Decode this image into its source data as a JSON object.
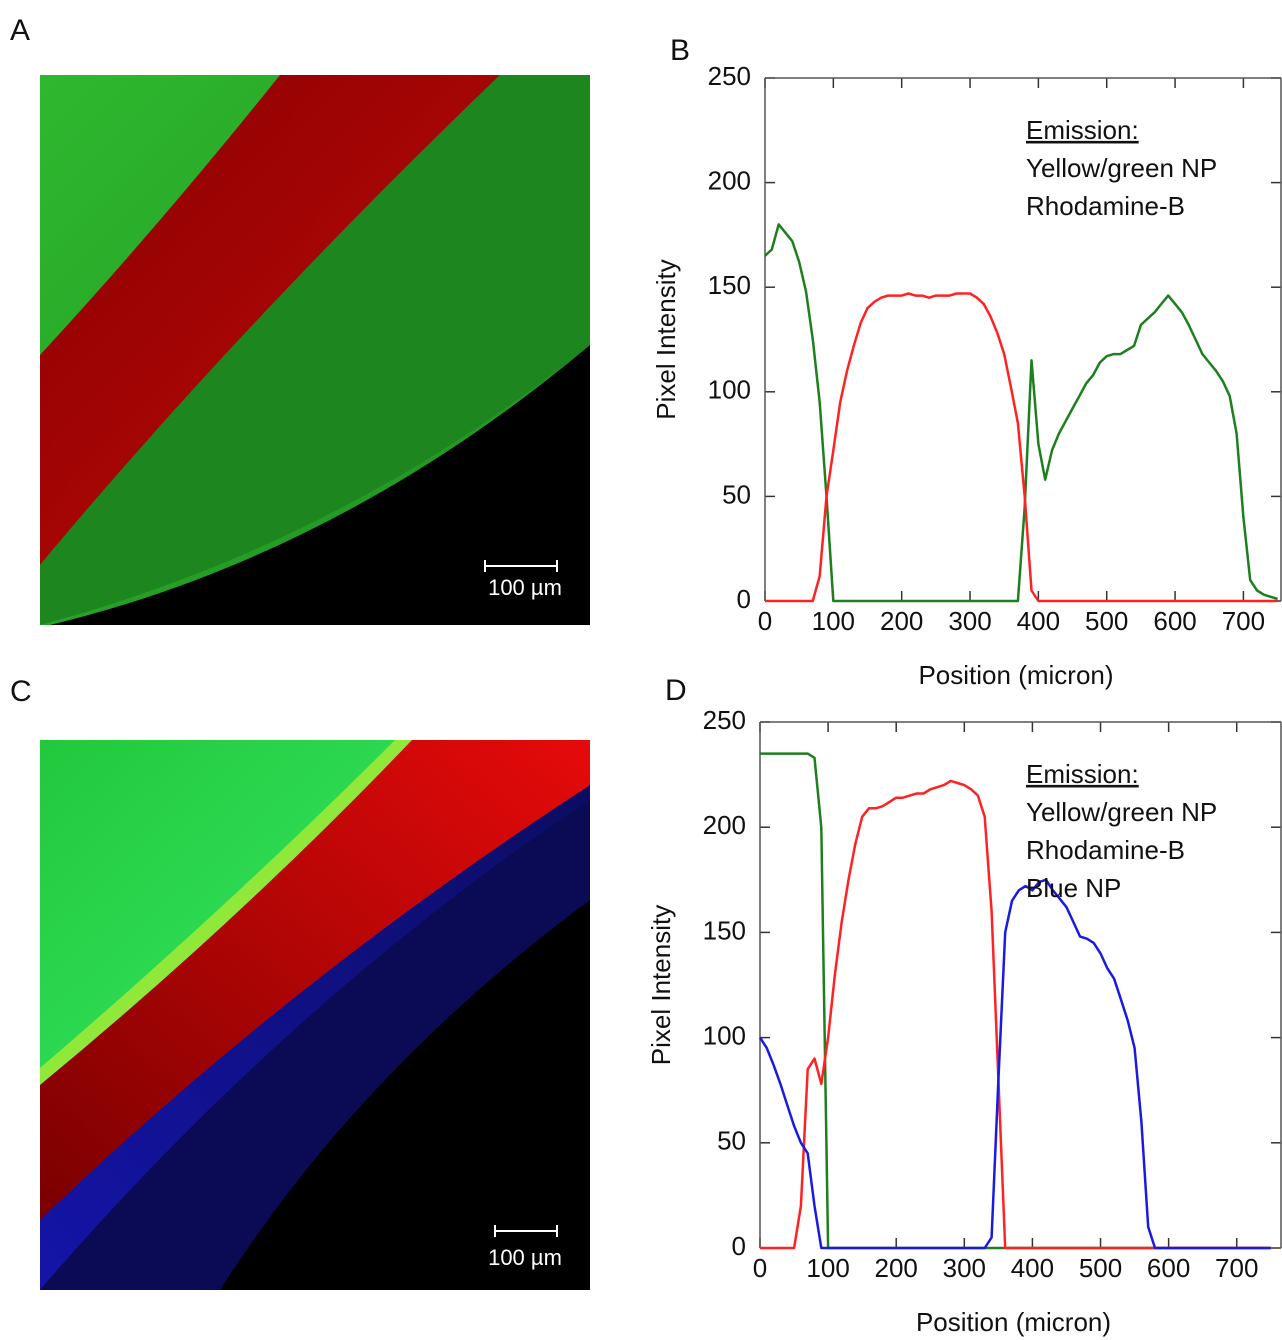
{
  "images": [
    {
      "label": "A",
      "scale_bar": "100 µm"
    },
    {
      "label": "C",
      "scale_bar": "100 µm"
    }
  ],
  "chart_data": [
    {
      "type": "line",
      "label": "B",
      "xlabel": "Position (micron)",
      "ylabel": "Pixel Intensity",
      "legend_title": "Emission:",
      "legend": "upper right",
      "x": [
        0,
        10,
        20,
        30,
        40,
        50,
        60,
        70,
        80,
        90,
        100,
        110,
        120,
        130,
        140,
        150,
        160,
        170,
        180,
        190,
        200,
        210,
        220,
        230,
        240,
        250,
        260,
        270,
        280,
        290,
        300,
        310,
        320,
        330,
        340,
        350,
        360,
        370,
        380,
        390,
        400,
        410,
        420,
        430,
        440,
        450,
        460,
        470,
        480,
        490,
        500,
        510,
        520,
        530,
        540,
        550,
        560,
        570,
        580,
        590,
        600,
        610,
        620,
        630,
        640,
        650,
        660,
        670,
        680,
        690,
        700,
        710,
        720,
        730,
        740,
        750
      ],
      "series": [
        {
          "name": "Yellow/green NP",
          "color": "#1e7f1e",
          "values": [
            165,
            168,
            180,
            176,
            172,
            162,
            148,
            125,
            95,
            50,
            0,
            0,
            0,
            0,
            0,
            0,
            0,
            0,
            0,
            0,
            0,
            0,
            0,
            0,
            0,
            0,
            0,
            0,
            0,
            0,
            0,
            0,
            0,
            0,
            0,
            0,
            0,
            0,
            45,
            115,
            75,
            58,
            72,
            80,
            86,
            92,
            98,
            104,
            108,
            114,
            117,
            118,
            118,
            120,
            122,
            132,
            135,
            138,
            142,
            146,
            142,
            138,
            132,
            125,
            118,
            114,
            110,
            105,
            98,
            80,
            40,
            10,
            5,
            3,
            2,
            1
          ]
        },
        {
          "name": "Rhodamine-B",
          "color": "#ff2222",
          "values": [
            0,
            0,
            0,
            0,
            0,
            0,
            0,
            0,
            12,
            50,
            72,
            95,
            110,
            122,
            133,
            140,
            143,
            145,
            146,
            146,
            146,
            147,
            146,
            146,
            145,
            146,
            146,
            146,
            147,
            147,
            147,
            145,
            142,
            136,
            128,
            118,
            102,
            85,
            50,
            5,
            0,
            0,
            0,
            0,
            0,
            0,
            0,
            0,
            0,
            0,
            0,
            0,
            0,
            0,
            0,
            0,
            0,
            0,
            0,
            0,
            0,
            0,
            0,
            0,
            0,
            0,
            0,
            0,
            0,
            0,
            0,
            0,
            0,
            0,
            0,
            0
          ]
        }
      ],
      "xlim": [
        0,
        755
      ],
      "xticks": [
        0,
        100,
        200,
        300,
        400,
        500,
        600,
        700
      ],
      "ylim": [
        0,
        250
      ],
      "yticks": [
        0,
        50,
        100,
        150,
        200,
        250
      ]
    },
    {
      "type": "line",
      "label": "D",
      "xlabel": "Position (micron)",
      "ylabel": "Pixel Intensity",
      "legend_title": "Emission:",
      "legend": "upper right",
      "x": [
        0,
        10,
        20,
        30,
        40,
        50,
        60,
        70,
        80,
        90,
        100,
        110,
        120,
        130,
        140,
        150,
        160,
        170,
        180,
        190,
        200,
        210,
        220,
        230,
        240,
        250,
        260,
        270,
        280,
        290,
        300,
        310,
        320,
        330,
        340,
        350,
        360,
        370,
        380,
        390,
        400,
        410,
        420,
        430,
        440,
        450,
        460,
        470,
        480,
        490,
        500,
        510,
        520,
        530,
        540,
        550,
        560,
        570,
        580,
        590,
        600,
        610,
        620,
        630,
        640,
        650,
        660,
        670,
        680,
        690,
        700,
        710,
        720,
        730,
        740,
        750
      ],
      "series": [
        {
          "name": "Yellow/green NP",
          "color": "#1e7f1e",
          "values": [
            235,
            235,
            235,
            235,
            235,
            235,
            235,
            235,
            233,
            200,
            0,
            0,
            0,
            0,
            0,
            0,
            0,
            0,
            0,
            0,
            0,
            0,
            0,
            0,
            0,
            0,
            0,
            0,
            0,
            0,
            0,
            0,
            0,
            0,
            0,
            0,
            0,
            0,
            0,
            0,
            0,
            0,
            0,
            0,
            0,
            0,
            0,
            0,
            0,
            0,
            0,
            0,
            0,
            0,
            0,
            0,
            0,
            0,
            0,
            0,
            0,
            0,
            0,
            0,
            0,
            0,
            0,
            0,
            0,
            0,
            0,
            0,
            0,
            0,
            0,
            0
          ]
        },
        {
          "name": "Rhodamine-B",
          "color": "#ff2222",
          "values": [
            0,
            0,
            0,
            0,
            0,
            0,
            20,
            85,
            90,
            78,
            100,
            130,
            155,
            175,
            192,
            205,
            209,
            209,
            210,
            212,
            214,
            214,
            215,
            216,
            216,
            218,
            219,
            220,
            222,
            221,
            220,
            218,
            215,
            205,
            160,
            80,
            0,
            0,
            0,
            0,
            0,
            0,
            0,
            0,
            0,
            0,
            0,
            0,
            0,
            0,
            0,
            0,
            0,
            0,
            0,
            0,
            0,
            0,
            0,
            0,
            0,
            0,
            0,
            0,
            0,
            0,
            0,
            0,
            0,
            0,
            0,
            0,
            0,
            0,
            0,
            0
          ]
        },
        {
          "name": "Blue NP",
          "color": "#1a1ae0",
          "values": [
            100,
            95,
            87,
            78,
            68,
            58,
            50,
            45,
            20,
            0,
            0,
            0,
            0,
            0,
            0,
            0,
            0,
            0,
            0,
            0,
            0,
            0,
            0,
            0,
            0,
            0,
            0,
            0,
            0,
            0,
            0,
            0,
            0,
            0,
            5,
            80,
            150,
            165,
            170,
            172,
            170,
            174,
            175,
            170,
            166,
            162,
            155,
            148,
            147,
            145,
            140,
            133,
            128,
            118,
            108,
            95,
            60,
            10,
            0,
            0,
            0,
            0,
            0,
            0,
            0,
            0,
            0,
            0,
            0,
            0,
            0,
            0,
            0,
            0,
            0,
            0
          ]
        }
      ],
      "xlim": [
        0,
        765
      ],
      "xticks": [
        0,
        100,
        200,
        300,
        400,
        500,
        600,
        700
      ],
      "ylim": [
        0,
        250
      ],
      "yticks": [
        0,
        50,
        100,
        150,
        200,
        250
      ]
    }
  ]
}
